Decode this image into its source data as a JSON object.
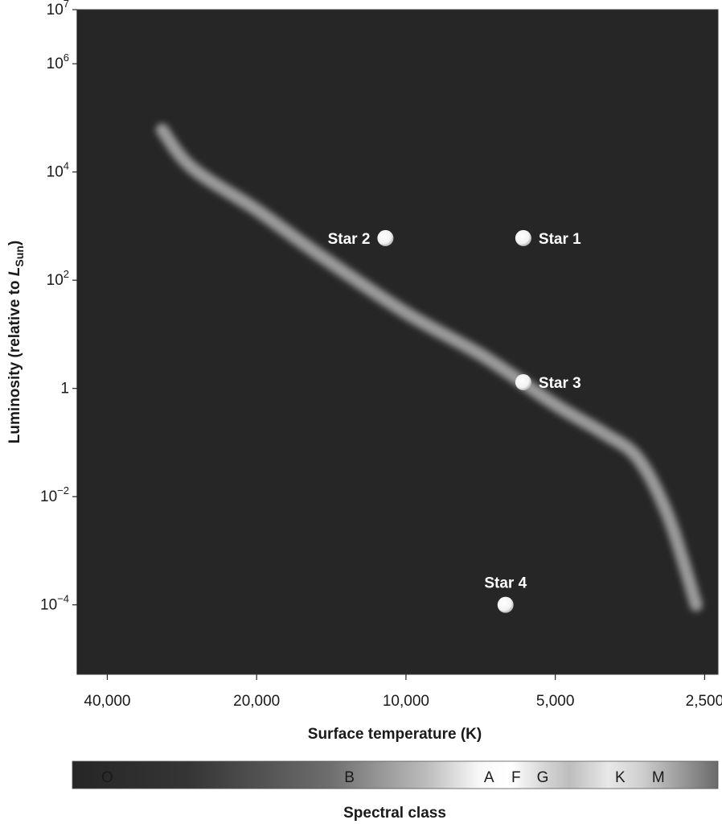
{
  "chart_data": {
    "type": "scatter",
    "title": "",
    "xlabel": "Surface temperature (K)",
    "ylabel_prefix": "Luminosity (relative to ",
    "ylabel_symbol": "L",
    "ylabel_subscript": "Sun",
    "ylabel_suffix": ")",
    "x_scale": "log-reversed",
    "y_scale": "log",
    "x_ticks": [
      {
        "value": 40000,
        "label": "40,000"
      },
      {
        "value": 20000,
        "label": "20,000"
      },
      {
        "value": 10000,
        "label": "10,000"
      },
      {
        "value": 5000,
        "label": "5,000"
      },
      {
        "value": 2500,
        "label": "2,500"
      }
    ],
    "y_ticks": [
      {
        "value": 10000000.0,
        "base": "10",
        "exp": "7"
      },
      {
        "value": 1000000.0,
        "base": "10",
        "exp": "6"
      },
      {
        "value": 10000.0,
        "base": "10",
        "exp": "4"
      },
      {
        "value": 100.0,
        "base": "10",
        "exp": "2"
      },
      {
        "value": 1,
        "base": "1",
        "exp": ""
      },
      {
        "value": 0.01,
        "base": "10",
        "exp": "−2"
      },
      {
        "value": 0.0001,
        "base": "10",
        "exp": "−4"
      }
    ],
    "xlim": [
      46000,
      2350
    ],
    "ylim": [
      5.2e-06,
      10000000.0
    ],
    "stars": [
      {
        "name": "Star 1",
        "temperature": 5800,
        "luminosity": 600,
        "label_side": "right"
      },
      {
        "name": "Star 2",
        "temperature": 11000,
        "luminosity": 600,
        "label_side": "left"
      },
      {
        "name": "Star 3",
        "temperature": 5800,
        "luminosity": 1.3,
        "label_side": "right"
      },
      {
        "name": "Star 4",
        "temperature": 6300,
        "luminosity": 0.0001,
        "label_side": "top"
      }
    ],
    "main_sequence": [
      {
        "temperature": 31000,
        "luminosity": 60000
      },
      {
        "temperature": 27000,
        "luminosity": 12000
      },
      {
        "temperature": 20000,
        "luminosity": 2000
      },
      {
        "temperature": 15000,
        "luminosity": 300
      },
      {
        "temperature": 10000,
        "luminosity": 25
      },
      {
        "temperature": 7000,
        "luminosity": 4
      },
      {
        "temperature": 5000,
        "luminosity": 0.5
      },
      {
        "temperature": 4000,
        "luminosity": 0.15
      },
      {
        "temperature": 3400,
        "luminosity": 0.05
      },
      {
        "temperature": 2950,
        "luminosity": 0.004
      },
      {
        "temperature": 2600,
        "luminosity": 0.0001
      }
    ],
    "spectral_class": {
      "label": "Spectral class",
      "classes": [
        {
          "letter": "O",
          "temperature": 40000
        },
        {
          "letter": "B",
          "temperature": 13000
        },
        {
          "letter": "A",
          "temperature": 6800
        },
        {
          "letter": "F",
          "temperature": 6000
        },
        {
          "letter": "G",
          "temperature": 5300
        },
        {
          "letter": "K",
          "temperature": 3700
        },
        {
          "letter": "M",
          "temperature": 3100
        }
      ]
    },
    "colors": {
      "plot_background": "#262626",
      "main_sequence": "#9a9a9a",
      "star": "#ffffff"
    }
  }
}
